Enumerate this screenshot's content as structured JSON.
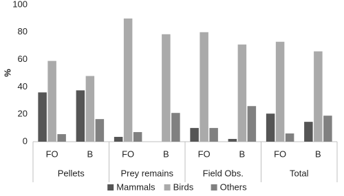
{
  "chart_data": {
    "type": "bar",
    "y_label": "%",
    "categories": [
      "FO",
      "B",
      "FO",
      "B",
      "FO",
      "B",
      "FO",
      "B"
    ],
    "groups": [
      "Pellets",
      "Prey remains",
      "Field Obs.",
      "Total"
    ],
    "series": [
      {
        "name": "Mammals",
        "color": "#555555",
        "values": [
          36,
          37.5,
          3.5,
          0,
          10,
          2,
          20.5,
          14.5
        ]
      },
      {
        "name": "Birds",
        "color": "#aaaaaa",
        "values": [
          59,
          48,
          90,
          78.5,
          80,
          71,
          73,
          66
        ]
      },
      {
        "name": "Others",
        "color": "#808080",
        "values": [
          5.5,
          16.5,
          7,
          21,
          10,
          26,
          6,
          19
        ]
      }
    ],
    "ylim": [
      0,
      100
    ],
    "yticks": [
      0,
      20,
      40,
      60,
      80,
      100
    ],
    "grid": false,
    "legend": "bottom"
  }
}
